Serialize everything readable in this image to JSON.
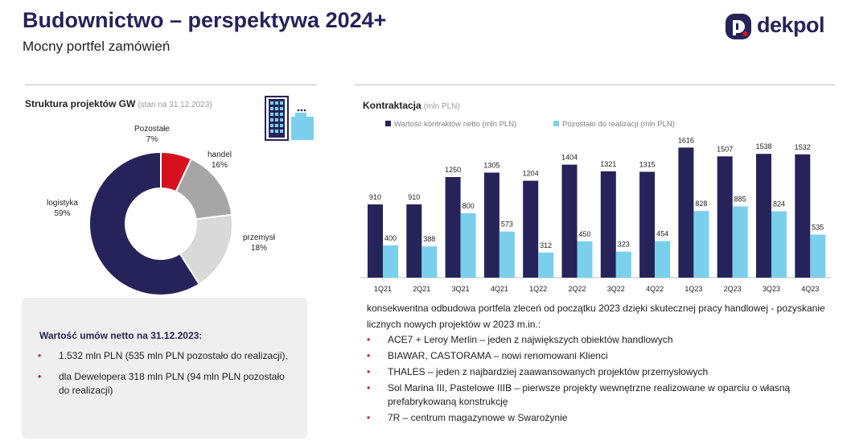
{
  "header": {
    "title": "Budownictwo – perspektywa 2024+",
    "subtitle": "Mocny portfel zamówień",
    "logo_text": "dekpol",
    "logo_mark": "D",
    "brand_color": "#26235a"
  },
  "left": {
    "section_title": "Struktura projektów GW",
    "section_note": "(stan na 31.12.2023)",
    "icon": "building-icon"
  },
  "right": {
    "section_title": "Kontraktacja",
    "section_note": "(mln PLN)"
  },
  "chart_data": [
    {
      "type": "pie",
      "donut": true,
      "title": "",
      "categories": [
        "logistyka",
        "Pozostałe",
        "handel",
        "przemysł"
      ],
      "values": [
        59,
        7,
        16,
        18
      ],
      "value_labels": [
        "59%",
        "7%",
        "16%",
        "18%"
      ],
      "colors": [
        "#26235a",
        "#d6101f",
        "#a6a6a6",
        "#d9d9d9"
      ]
    },
    {
      "type": "bar",
      "title": "",
      "legend_position": "top",
      "categories": [
        "1Q21",
        "2Q21",
        "3Q21",
        "4Q21",
        "1Q22",
        "2Q22",
        "3Q22",
        "4Q22",
        "1Q23",
        "2Q23",
        "3Q23",
        "4Q23"
      ],
      "series": [
        {
          "name": "Wartość kontraktów netto (mln PLN)",
          "color": "#26235a",
          "values": [
            910,
            910,
            1250,
            1305,
            1204,
            1404,
            1321,
            1315,
            1616,
            1507,
            1538,
            1532
          ]
        },
        {
          "name": "Pozostało do realizacji (mln PLN)",
          "color": "#7ad0ec",
          "values": [
            400,
            388,
            800,
            573,
            312,
            450,
            323,
            454,
            828,
            885,
            824,
            535
          ]
        }
      ],
      "ylim": [
        0,
        1650
      ],
      "grid": false
    }
  ],
  "summary": {
    "title": "Wartość umów netto na 31.12.2023:",
    "bullet_symbol": "•",
    "items": [
      "1.532 mln PLN (535 mln PLN pozostało do realizacji),",
      "dla Dewelopera 318 mln PLN (94 mln PLN pozostało do realizacji)"
    ]
  },
  "projects": {
    "intro": "konsekwentna odbudowa portfela zleceń od początku 2023 dzięki skutecznej pracy handlowej - pozyskanie licznych nowych projektów w 2023 m.in.:",
    "bullet_symbol": "•",
    "items": [
      "ACE7 + Leroy Merlin – jeden z największych obiektów handlowych",
      "BIAWAR, CASTORAMA – nowi renomowani Klienci",
      "THALES – jeden z najbardziej zaawansowanych projektów przemysłowych",
      "Sol Marina III, Pastelowe IIIB – pierwsze projekty wewnętrzne realizowane w oparciu o własną prefabrykowaną konstrukcję",
      "7R – centrum magazynowe w Swarożynie"
    ]
  }
}
